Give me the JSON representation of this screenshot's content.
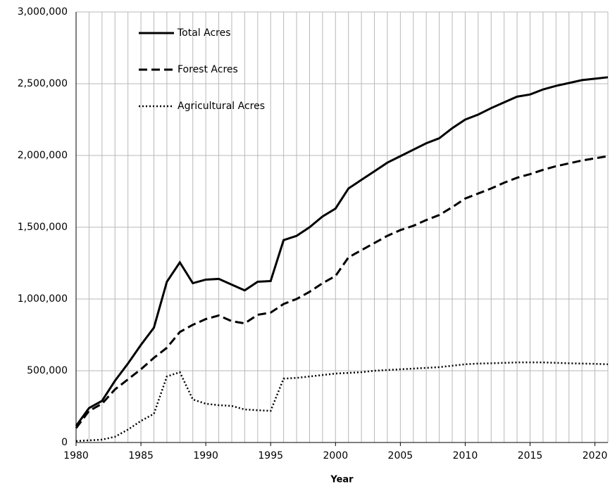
{
  "chart_data": {
    "type": "line",
    "x_label": "Year",
    "x": [
      1980,
      1981,
      1982,
      1983,
      1984,
      1985,
      1986,
      1987,
      1988,
      1989,
      1990,
      1991,
      1992,
      1993,
      1994,
      1995,
      1996,
      1997,
      1998,
      1999,
      2000,
      2001,
      2002,
      2003,
      2004,
      2005,
      2006,
      2007,
      2008,
      2009,
      2010,
      2011,
      2012,
      2013,
      2014,
      2015,
      2016,
      2017,
      2018,
      2019,
      2020,
      2021
    ],
    "series": [
      {
        "name": "Total Acres",
        "color": "#000000",
        "dash": "solid",
        "values": [
          115000,
          240000,
          290000,
          430000,
          550000,
          680000,
          800000,
          1120000,
          1255000,
          1110000,
          1135000,
          1140000,
          1100000,
          1060000,
          1120000,
          1125000,
          1410000,
          1440000,
          1500000,
          1575000,
          1630000,
          1770000,
          1830000,
          1890000,
          1950000,
          1995000,
          2040000,
          2085000,
          2120000,
          2190000,
          2250000,
          2285000,
          2330000,
          2370000,
          2410000,
          2425000,
          2460000,
          2485000,
          2505000,
          2525000,
          2535000,
          2545000
        ]
      },
      {
        "name": "Forest Acres",
        "color": "#000000",
        "dash": "dashed",
        "values": [
          100000,
          220000,
          270000,
          370000,
          440000,
          510000,
          590000,
          660000,
          770000,
          820000,
          860000,
          885000,
          845000,
          830000,
          890000,
          905000,
          965000,
          1000000,
          1050000,
          1110000,
          1160000,
          1290000,
          1340000,
          1390000,
          1440000,
          1480000,
          1510000,
          1550000,
          1585000,
          1640000,
          1700000,
          1735000,
          1770000,
          1810000,
          1845000,
          1870000,
          1900000,
          1925000,
          1945000,
          1965000,
          1980000,
          1995000
        ]
      },
      {
        "name": "Agricultural Acres",
        "color": "#000000",
        "dash": "dotted",
        "values": [
          10000,
          15000,
          20000,
          40000,
          90000,
          150000,
          200000,
          460000,
          490000,
          300000,
          270000,
          260000,
          255000,
          230000,
          225000,
          220000,
          445000,
          450000,
          460000,
          470000,
          480000,
          485000,
          490000,
          500000,
          505000,
          510000,
          515000,
          520000,
          525000,
          535000,
          545000,
          550000,
          552000,
          555000,
          558000,
          558000,
          558000,
          555000,
          552000,
          550000,
          548000,
          545000
        ]
      }
    ],
    "xlim": [
      1980,
      2021
    ],
    "xticks": [
      1980,
      1985,
      1990,
      1995,
      2000,
      2005,
      2010,
      2015,
      2020
    ],
    "ylim": [
      0,
      3000000
    ],
    "yticks": [
      0,
      {
        "value": 500000,
        "label": "500,000"
      },
      {
        "value": 1000000,
        "label": "1,000,000"
      },
      {
        "value": 1500000,
        "label": "1,500,000"
      },
      {
        "value": 2000000,
        "label": "2,000,000"
      },
      {
        "value": 2500000,
        "label": "2,500,000"
      },
      {
        "value": 3000000,
        "label": "3,000,000"
      }
    ],
    "grid": true,
    "legend": "upper left"
  }
}
